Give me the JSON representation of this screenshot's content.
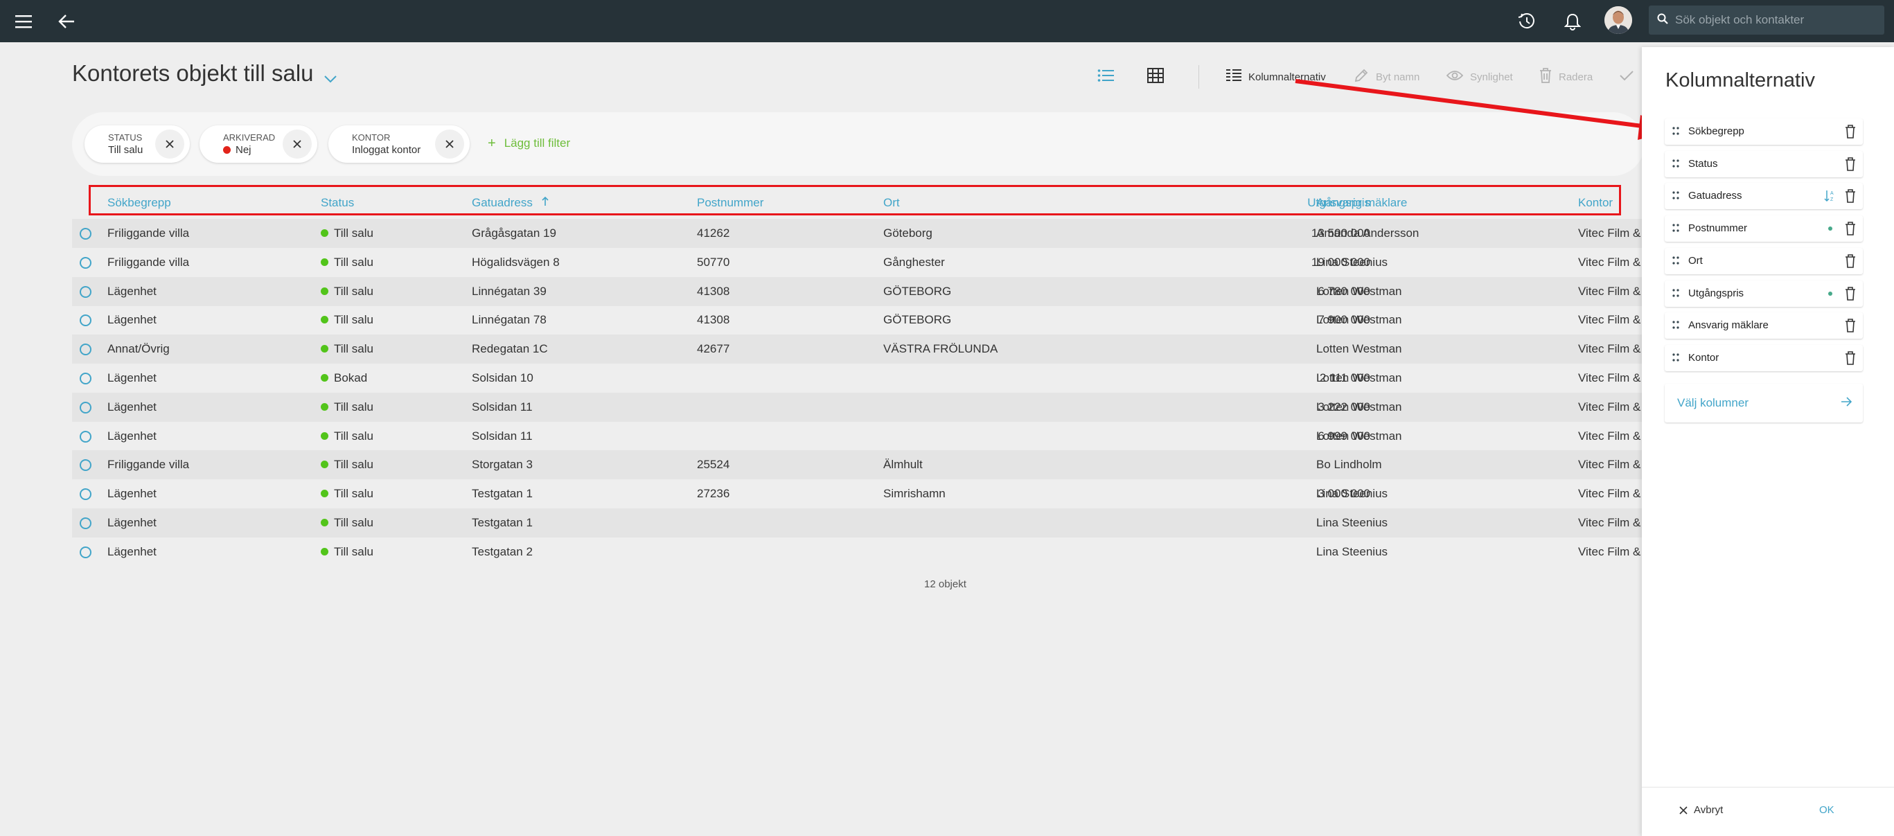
{
  "topbar": {
    "menu_icon": "hamburger-icon",
    "back_icon": "arrow-left-icon",
    "history_icon": "history-icon",
    "bell_icon": "bell-icon",
    "search_placeholder": "Sök objekt och kontakter"
  },
  "page": {
    "title": "Kontorets objekt till salu"
  },
  "toolbar": {
    "kolumnalternativ": "Kolumnalternativ",
    "byt_namn": "Byt namn",
    "synlighet": "Synlighet",
    "radera": "Radera"
  },
  "filters": [
    {
      "label": "STATUS",
      "value": "Till salu"
    },
    {
      "label": "ARKIVERAD",
      "value": "Nej"
    },
    {
      "label": "KONTOR",
      "value": "Inloggat kontor"
    }
  ],
  "add_filter": "Lägg till filter",
  "table": {
    "headers": {
      "sokbegrepp": "Sökbegrepp",
      "status": "Status",
      "gatuadress": "Gatuadress",
      "postnummer": "Postnummer",
      "ort": "Ort",
      "utgangspris": "Utgångspris",
      "maklare": "Ansvarig mäklare",
      "kontor": "Kontor"
    },
    "rows": [
      {
        "sok": "Friliggande villa",
        "status": "Till salu",
        "adress": "Grågåsgatan 19",
        "post": "41262",
        "ort": "Göteborg",
        "pris": "13 500 000",
        "maklare": "Amanda Andersson",
        "kontor": "Vitec Film &"
      },
      {
        "sok": "Friliggande villa",
        "status": "Till salu",
        "adress": "Högalidsvägen 8",
        "post": "50770",
        "ort": "Gånghester",
        "pris": "19 000 000",
        "maklare": "Lina Steenius",
        "kontor": "Vitec Film &"
      },
      {
        "sok": "Lägenhet",
        "status": "Till salu",
        "adress": "Linnégatan 39",
        "post": "41308",
        "ort": "GÖTEBORG",
        "pris": "6 780 000",
        "maklare": "Lotten Westman",
        "kontor": "Vitec Film &"
      },
      {
        "sok": "Lägenhet",
        "status": "Till salu",
        "adress": "Linnégatan 78",
        "post": "41308",
        "ort": "GÖTEBORG",
        "pris": "7 900 000",
        "maklare": "Lotten Westman",
        "kontor": "Vitec Film &"
      },
      {
        "sok": "Annat/Övrig",
        "status": "Till salu",
        "adress": "Redegatan 1C",
        "post": "42677",
        "ort": "VÄSTRA FRÖLUNDA",
        "pris": "",
        "maklare": "Lotten Westman",
        "kontor": "Vitec Film &"
      },
      {
        "sok": "Lägenhet",
        "status": "Bokad",
        "adress": "Solsidan 10",
        "post": "",
        "ort": "",
        "pris": "2 111 000",
        "maklare": "Lotten Westman",
        "kontor": "Vitec Film &"
      },
      {
        "sok": "Lägenhet",
        "status": "Till salu",
        "adress": "Solsidan 11",
        "post": "",
        "ort": "",
        "pris": "3 222 000",
        "maklare": "Lotten Westman",
        "kontor": "Vitec Film &"
      },
      {
        "sok": "Lägenhet",
        "status": "Till salu",
        "adress": "Solsidan 11",
        "post": "",
        "ort": "",
        "pris": "6 999 000",
        "maklare": "Lotten Westman",
        "kontor": "Vitec Film &"
      },
      {
        "sok": "Friliggande villa",
        "status": "Till salu",
        "adress": "Storgatan 3",
        "post": "25524",
        "ort": "Älmhult",
        "pris": "",
        "maklare": "Bo Lindholm",
        "kontor": "Vitec Film &"
      },
      {
        "sok": "Lägenhet",
        "status": "Till salu",
        "adress": "Testgatan 1",
        "post": "27236",
        "ort": "Simrishamn",
        "pris": "3 000 000",
        "maklare": "Lina Steenius",
        "kontor": "Vitec Film &"
      },
      {
        "sok": "Lägenhet",
        "status": "Till salu",
        "adress": "Testgatan 1",
        "post": "",
        "ort": "",
        "pris": "",
        "maklare": "Lina Steenius",
        "kontor": "Vitec Film &"
      },
      {
        "sok": "Lägenhet",
        "status": "Till salu",
        "adress": "Testgatan 2",
        "post": "",
        "ort": "",
        "pris": "",
        "maklare": "Lina Steenius",
        "kontor": "Vitec Film &"
      }
    ],
    "count": "12 objekt"
  },
  "panel": {
    "title": "Kolumnalternativ",
    "columns": [
      {
        "label": "Sökbegrepp",
        "marker": "none"
      },
      {
        "label": "Status",
        "marker": "none"
      },
      {
        "label": "Gatuadress",
        "marker": "sort"
      },
      {
        "label": "Postnummer",
        "marker": "dot"
      },
      {
        "label": "Ort",
        "marker": "none"
      },
      {
        "label": "Utgångspris",
        "marker": "dot"
      },
      {
        "label": "Ansvarig mäklare",
        "marker": "none"
      },
      {
        "label": "Kontor",
        "marker": "none"
      }
    ],
    "valj_kolumner": "Välj kolumner",
    "avbryt": "Avbryt",
    "ok": "OK"
  },
  "colors": {
    "topbar": "#263238",
    "accent": "#42a5c9",
    "status_green": "#52c41a",
    "status_red": "#e2231a",
    "annotation_red": "#e8161b",
    "add_filter_green": "#6ebd3b"
  }
}
